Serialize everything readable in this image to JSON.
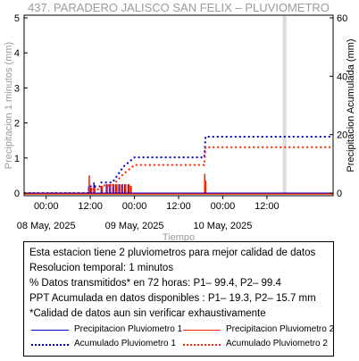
{
  "chart_data": {
    "type": "line",
    "title": "437. PARADERO JALISCO SAN FELIX – PLUVIOMETRO",
    "xlabel": "Tiempo",
    "ylabel_left": "Precipitacion 1 minutos (mm)",
    "ylabel_right": "Precipitacion Acumulada (mm)",
    "ylim_left": [
      0,
      5
    ],
    "ylim_right": [
      0,
      60
    ],
    "yticks_left": [
      "0",
      "1",
      "2",
      "3",
      "4",
      "5"
    ],
    "yticks_right": [
      "0",
      "20",
      "40",
      "60"
    ],
    "xlim_hours": [
      -6,
      78
    ],
    "xticks": [
      {
        "h": 0,
        "time": "00:00",
        "date": "08 May, 2025"
      },
      {
        "h": 12,
        "time": "12:00",
        "date": ""
      },
      {
        "h": 24,
        "time": "00:00",
        "date": "09 May, 2025"
      },
      {
        "h": 36,
        "time": "12:00",
        "date": ""
      },
      {
        "h": 48,
        "time": "00:00",
        "date": "10 May, 2025"
      },
      {
        "h": 60,
        "time": "12:00",
        "date": ""
      }
    ],
    "shaded_band_hours": [
      64.3,
      65.3
    ],
    "series": [
      {
        "name": "Precipitacion Pluviometro 1",
        "kind": "bars",
        "color": "#0000cc",
        "points": [
          [
            11.6,
            0.2
          ],
          [
            12.1,
            0.15
          ],
          [
            13.0,
            0.3
          ],
          [
            15.0,
            0.2
          ],
          [
            16.4,
            0.25
          ],
          [
            17.3,
            0.25
          ],
          [
            18.2,
            0.25
          ],
          [
            19.0,
            0.25
          ],
          [
            19.8,
            0.25
          ],
          [
            20.6,
            0.25
          ],
          [
            21.4,
            0.25
          ],
          [
            22.3,
            0.25
          ],
          [
            23.0,
            0.2
          ],
          [
            43.2,
            0.3
          ]
        ]
      },
      {
        "name": "Precipitacion Pluviometro 2",
        "kind": "bars",
        "color": "#ff2200",
        "points": [
          [
            11.7,
            0.5
          ],
          [
            12.3,
            0.15
          ],
          [
            13.2,
            0.2
          ],
          [
            15.2,
            0.2
          ],
          [
            16.6,
            0.25
          ],
          [
            17.5,
            0.25
          ],
          [
            18.4,
            0.25
          ],
          [
            19.2,
            0.25
          ],
          [
            20.0,
            0.25
          ],
          [
            20.8,
            0.25
          ],
          [
            21.6,
            0.25
          ],
          [
            22.5,
            0.25
          ],
          [
            23.1,
            0.2
          ],
          [
            43.1,
            0.55
          ],
          [
            43.35,
            0.35
          ]
        ]
      },
      {
        "name": "Acumulado Pluviometro 1",
        "kind": "line",
        "color": "#0000cc",
        "points": [
          [
            -6,
            0
          ],
          [
            11.4,
            0
          ],
          [
            11.7,
            2.3
          ],
          [
            14.6,
            2.3
          ],
          [
            15.0,
            3.6
          ],
          [
            18.0,
            3.6
          ],
          [
            21.0,
            9.0
          ],
          [
            24.0,
            12.2
          ],
          [
            43.0,
            12.2
          ],
          [
            43.3,
            19.3
          ],
          [
            78,
            19.3
          ]
        ]
      },
      {
        "name": "Acumulado Pluviometro 2",
        "kind": "line",
        "color": "#ff2200",
        "points": [
          [
            -6,
            0
          ],
          [
            11.4,
            0
          ],
          [
            11.7,
            1.3
          ],
          [
            14.6,
            1.3
          ],
          [
            15.0,
            2.6
          ],
          [
            18.0,
            2.6
          ],
          [
            21.0,
            6.5
          ],
          [
            24.0,
            9.6
          ],
          [
            43.0,
            9.6
          ],
          [
            43.3,
            15.7
          ],
          [
            78,
            15.7
          ]
        ]
      }
    ]
  },
  "info": {
    "lines": [
      "Esta estacion tiene 2 pluviometros para mejor calidad de datos",
      "Resolucion temporal: 1 minutos",
      "% Datos transmitidos* en 72 horas: P1– 99.4, P2– 99.4",
      "PPT Acumulada en datos disponibles : P1– 19.3, P2– 15.7 mm",
      "*Calidad de datos aun sin verificar exhaustivamente"
    ],
    "legend": [
      {
        "label": "Precipitacion Pluviometro 1",
        "color": "#0000cc",
        "style": "solid"
      },
      {
        "label": "Precipitacion Pluviometro 2",
        "color": "#ff2200",
        "style": "solid"
      },
      {
        "label": "Acumulado Pluviometro 1",
        "color": "#0000cc",
        "style": "dotted"
      },
      {
        "label": "Acumulado Pluviometro 2",
        "color": "#ff2200",
        "style": "dotted"
      }
    ]
  }
}
